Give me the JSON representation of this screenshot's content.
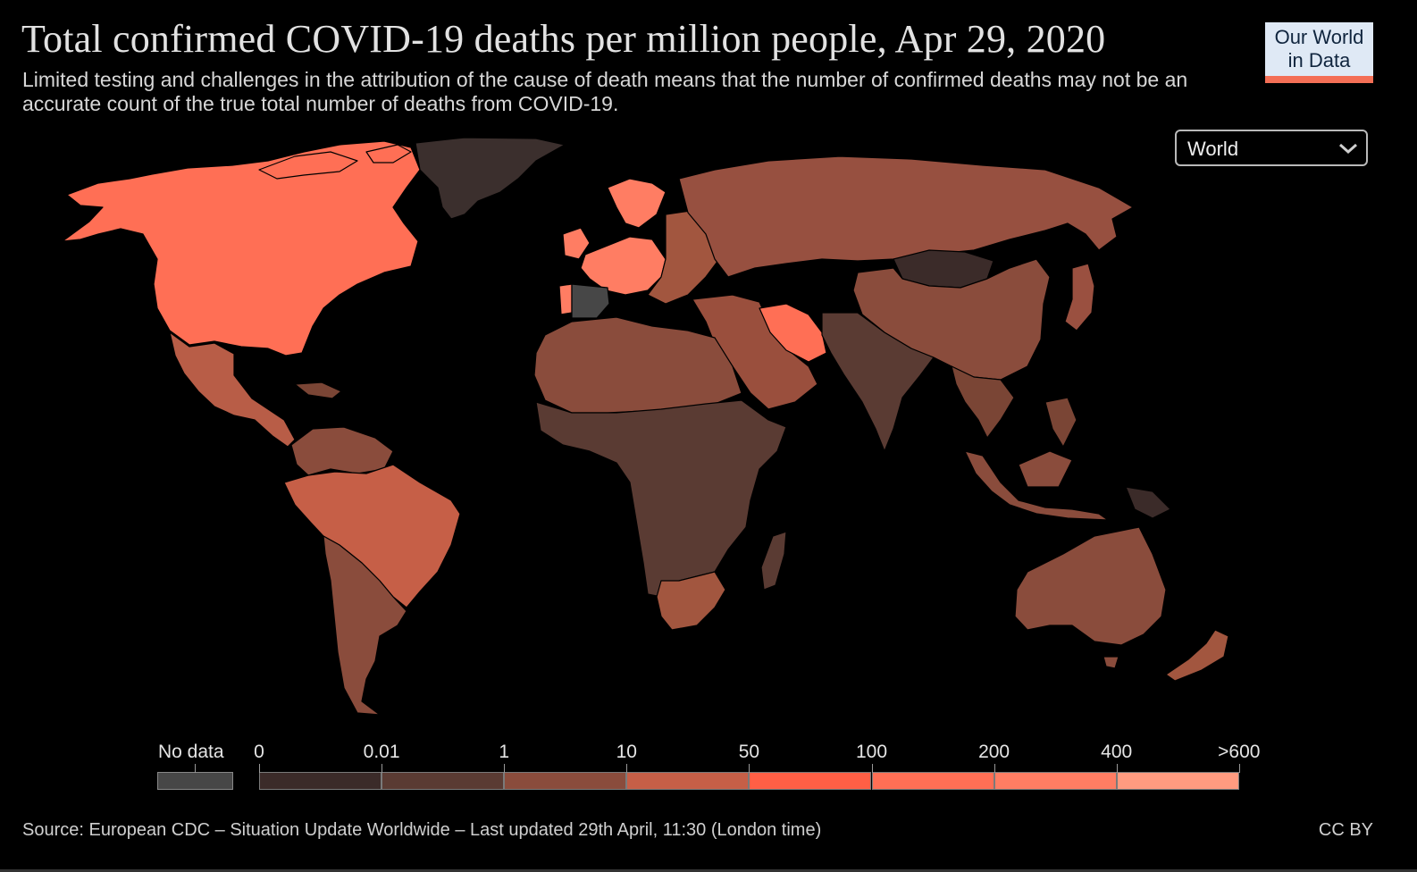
{
  "header": {
    "title": "Total confirmed COVID-19 deaths per million people, Apr 29, 2020",
    "subtitle": "Limited testing and challenges in the attribution of the cause of death means that the number of confirmed deaths may not be an accurate count of the true total number of deaths from COVID-19."
  },
  "logo": {
    "line1": "Our World",
    "line2": "in Data"
  },
  "region_selector": {
    "value": "World",
    "icon": "chevron-down-icon"
  },
  "legend": {
    "no_data_label": "No data",
    "no_data_color": "#474747",
    "bins": [
      {
        "label_start": "0",
        "color": "#3b2b29"
      },
      {
        "label_start": "0.01",
        "color": "#5a3b33"
      },
      {
        "label_start": "1",
        "color": "#8a4c3c"
      },
      {
        "label_start": "10",
        "color": "#c65f47"
      },
      {
        "label_start": "50",
        "color": "#ff5f45"
      },
      {
        "label_start": "100",
        "color": "#ff6f55"
      },
      {
        "label_start": "200",
        "color": "#ff7d63"
      },
      {
        "label_start": "400",
        "color": "#ff9b80"
      }
    ],
    "last_label": ">600"
  },
  "map_regions": {
    "greenland": "#3b2f2d",
    "north_america": "#ff6f55",
    "central_america": "#b85d47",
    "caribbean": "#7a4535",
    "south_america_north": "#8a4c3c",
    "brazil_peru": "#c65f47",
    "south_america_south": "#8a4c3c",
    "europe_west": "#ff7d63",
    "europe_east": "#a2563f",
    "iberia_portugal": "#ff7d63",
    "iberia_spain_nodata": "#474747",
    "russia": "#975040",
    "africa_north": "#8a4c3c",
    "africa_central": "#5a3b33",
    "africa_south": "#a2563f",
    "madagascar": "#5a3b33",
    "middle_east": "#9a4f3d",
    "iran": "#ff6f55",
    "south_asia": "#5a3b33",
    "mongolia": "#3b2b29",
    "china": "#8a4c3c",
    "southeast_asia": "#7a4535",
    "indonesia": "#8a4c3c",
    "japan": "#9a5040",
    "australia": "#8a4c3c",
    "new_zealand": "#a2563f",
    "png": "#3b2b29"
  },
  "footer": {
    "source": "Source: European CDC – Situation Update Worldwide – Last updated 29th April, 11:30 (London time)",
    "license": "CC BY"
  }
}
